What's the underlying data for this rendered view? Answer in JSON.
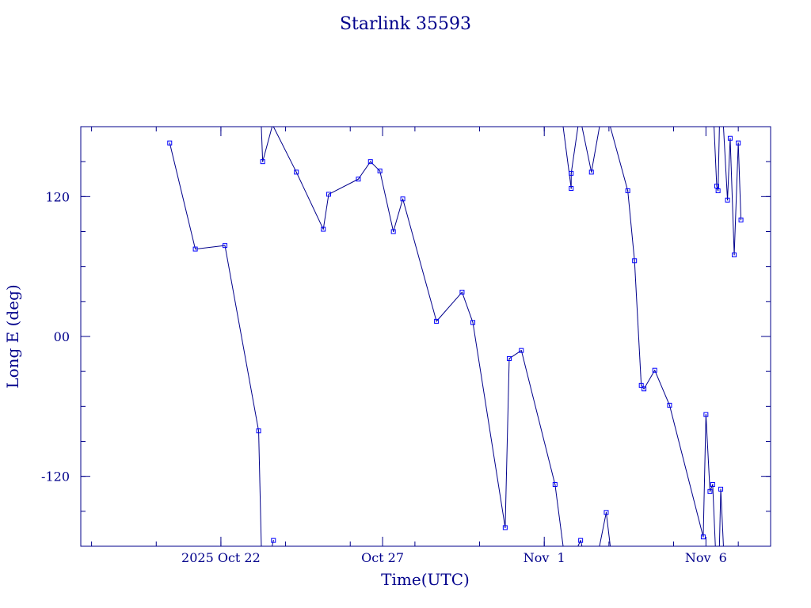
{
  "chart_data": {
    "type": "line",
    "title": "Starlink 35593",
    "xlabel": "Time(UTC)",
    "ylabel": "Long E (deg)",
    "xlim": [
      "2025-10-17T16:00",
      "2025-11-08T00:00"
    ],
    "ylim": [
      -180,
      180
    ],
    "x_ticks": [
      {
        "label": "2025 Oct 22",
        "date": "2025-10-22"
      },
      {
        "label": "Oct 27",
        "date": "2025-10-27"
      },
      {
        "label": "Nov  1",
        "date": "2025-11-01"
      },
      {
        "label": "Nov  6",
        "date": "2025-11-06"
      }
    ],
    "y_ticks": [
      {
        "label": "-120",
        "value": -120
      },
      {
        "label": "00",
        "value": 0
      },
      {
        "label": "120",
        "value": 120
      }
    ],
    "grid": false,
    "line_color": "#00008b",
    "marker_color": "#0000ff",
    "series": [
      {
        "values": [
          [
            "2025-10-20T10:00",
            166
          ],
          [
            "2025-10-21T05:00",
            75
          ],
          [
            "2025-10-22T03:00",
            78
          ],
          [
            "2025-10-23T04:00",
            -81
          ],
          [
            "2025-10-23T06:00",
            -180
          ],
          [
            "2025-10-23T06:00",
            180
          ],
          [
            "2025-10-23T07:00",
            150
          ],
          [
            "2025-10-23T14:00",
            180
          ],
          [
            "2025-10-23T14:00",
            -180
          ],
          [
            "2025-10-23T15:00",
            -175
          ],
          [
            "2025-10-23T13:00",
            180
          ],
          [
            "2025-10-23T15:00",
            180
          ],
          [
            "2025-10-24T08:00",
            141
          ],
          [
            "2025-10-25T04:00",
            92
          ],
          [
            "2025-10-25T08:00",
            122
          ],
          [
            "2025-10-26T06:00",
            135
          ],
          [
            "2025-10-26T15:00",
            150
          ],
          [
            "2025-10-26T22:00",
            142
          ],
          [
            "2025-10-27T08:00",
            90
          ],
          [
            "2025-10-27T15:00",
            118
          ],
          [
            "2025-10-28T16:00",
            13
          ],
          [
            "2025-10-29T11:00",
            38
          ],
          [
            "2025-10-29T19:00",
            12
          ],
          [
            "2025-10-30T19:00",
            -164
          ],
          [
            "2025-10-30T22:00",
            -19
          ],
          [
            "2025-10-31T07:00",
            -12
          ],
          [
            "2025-11-01T08:00",
            -127
          ],
          [
            "2025-11-01T14:00",
            -180
          ],
          [
            "2025-11-01T14:00",
            180
          ],
          [
            "2025-11-01T20:00",
            127
          ],
          [
            "2025-11-01T20:00",
            140
          ],
          [
            "2025-11-02T01:00",
            180
          ],
          [
            "2025-11-02T01:00",
            -180
          ],
          [
            "2025-11-02T03:00",
            -175
          ],
          [
            "2025-11-02T04:00",
            -180
          ],
          [
            "2025-11-02T04:00",
            180
          ],
          [
            "2025-11-02T11:00",
            141
          ],
          [
            "2025-11-02T17:00",
            180
          ],
          [
            "2025-11-02T17:00",
            -180
          ],
          [
            "2025-11-02T22:00",
            -151
          ],
          [
            "2025-11-03T01:00",
            -180
          ],
          [
            "2025-11-03T01:00",
            180
          ],
          [
            "2025-11-03T14:00",
            125
          ],
          [
            "2025-11-03T19:00",
            65
          ],
          [
            "2025-11-04T00:00",
            -42
          ],
          [
            "2025-11-04T02:00",
            -45
          ],
          [
            "2025-11-04T10:00",
            -29
          ],
          [
            "2025-11-04T21:00",
            -59
          ],
          [
            "2025-11-05T22:00",
            -172
          ],
          [
            "2025-11-06T00:00",
            -67
          ],
          [
            "2025-11-06T03:00",
            -133
          ],
          [
            "2025-11-06T05:00",
            -127
          ],
          [
            "2025-11-06T07:00",
            -180
          ],
          [
            "2025-11-06T07:00",
            180
          ],
          [
            "2025-11-06T04:00",
            180
          ],
          [
            "2025-11-06T05:00",
            180
          ],
          [
            "2025-11-06T06:00",
            180
          ],
          [
            "2025-11-06T08:00",
            129
          ],
          [
            "2025-11-06T09:00",
            125
          ],
          [
            "2025-11-06T10:00",
            180
          ],
          [
            "2025-11-06T10:00",
            -180
          ],
          [
            "2025-11-06T11:00",
            -131
          ],
          [
            "2025-11-06T13:00",
            -180
          ],
          [
            "2025-11-06T13:00",
            180
          ],
          [
            "2025-11-06T16:00",
            117
          ],
          [
            "2025-11-06T18:00",
            170
          ],
          [
            "2025-11-06T21:00",
            70
          ],
          [
            "2025-11-07T00:00",
            166
          ],
          [
            "2025-11-07T02:00",
            100
          ]
        ]
      }
    ]
  }
}
